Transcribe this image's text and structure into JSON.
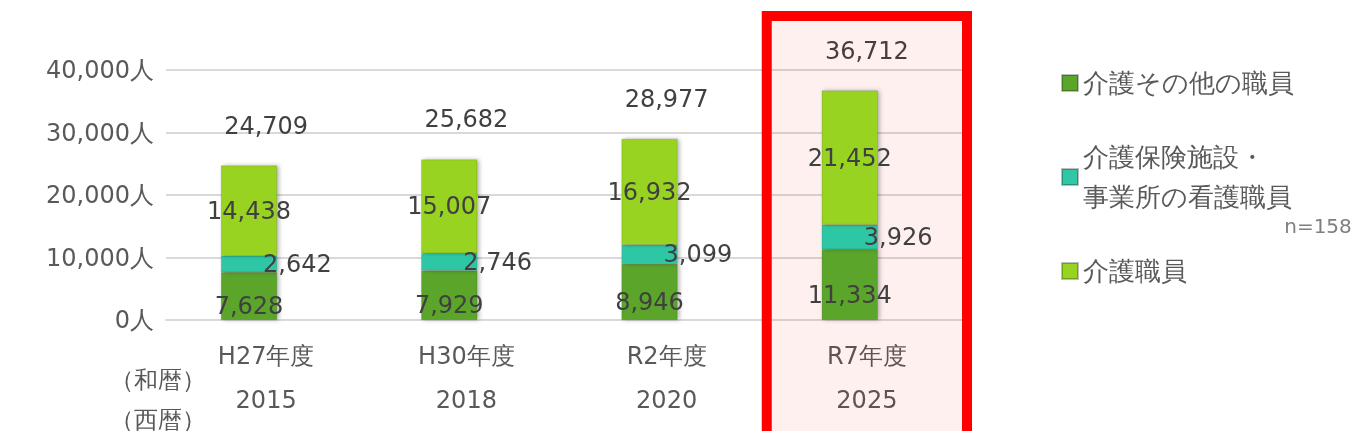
{
  "chart_data": {
    "type": "bar",
    "stacked": true,
    "categories": [
      "H27年度\n2015",
      "H30年度\n2018",
      "R2年度\n2020",
      "R7年度\n2025"
    ],
    "series": [
      {
        "name": "介護その他の職員",
        "color": "#5aa52a",
        "values": [
          7628,
          7929,
          8946,
          11334
        ],
        "value_labels": [
          "7,628",
          "7,929",
          "8,946",
          "11,334"
        ]
      },
      {
        "name": "介護保険施設・事業所の看護職員",
        "color": "#2fc7a5",
        "values": [
          2642,
          2746,
          3099,
          3926
        ],
        "value_labels": [
          "2,642",
          "2,746",
          "3,099",
          "3,926"
        ]
      },
      {
        "name": "介護職員",
        "color": "#99d321",
        "values": [
          14438,
          15007,
          16932,
          21452
        ],
        "value_labels": [
          "14,438",
          "15,007",
          "16,932",
          "21,452"
        ]
      }
    ],
    "totals": [
      "24,709",
      "25,682",
      "28,977",
      "36,712"
    ],
    "ylim": [
      0,
      40000
    ],
    "yticks": [
      {
        "value": 0,
        "label": "0人"
      },
      {
        "value": 10000,
        "label": "10,000人"
      },
      {
        "value": 20000,
        "label": "20,000人"
      },
      {
        "value": 30000,
        "label": "30,000人"
      },
      {
        "value": 40000,
        "label": "40,000人"
      }
    ],
    "grid": "y",
    "legend": "right",
    "bands": [
      {
        "axis": "x",
        "from": "R7年度\n2025",
        "to": "R7年度\n2025",
        "color": "#ff0000"
      }
    ],
    "annotations": [
      "（和暦）",
      "（西暦）",
      "n=158"
    ]
  }
}
